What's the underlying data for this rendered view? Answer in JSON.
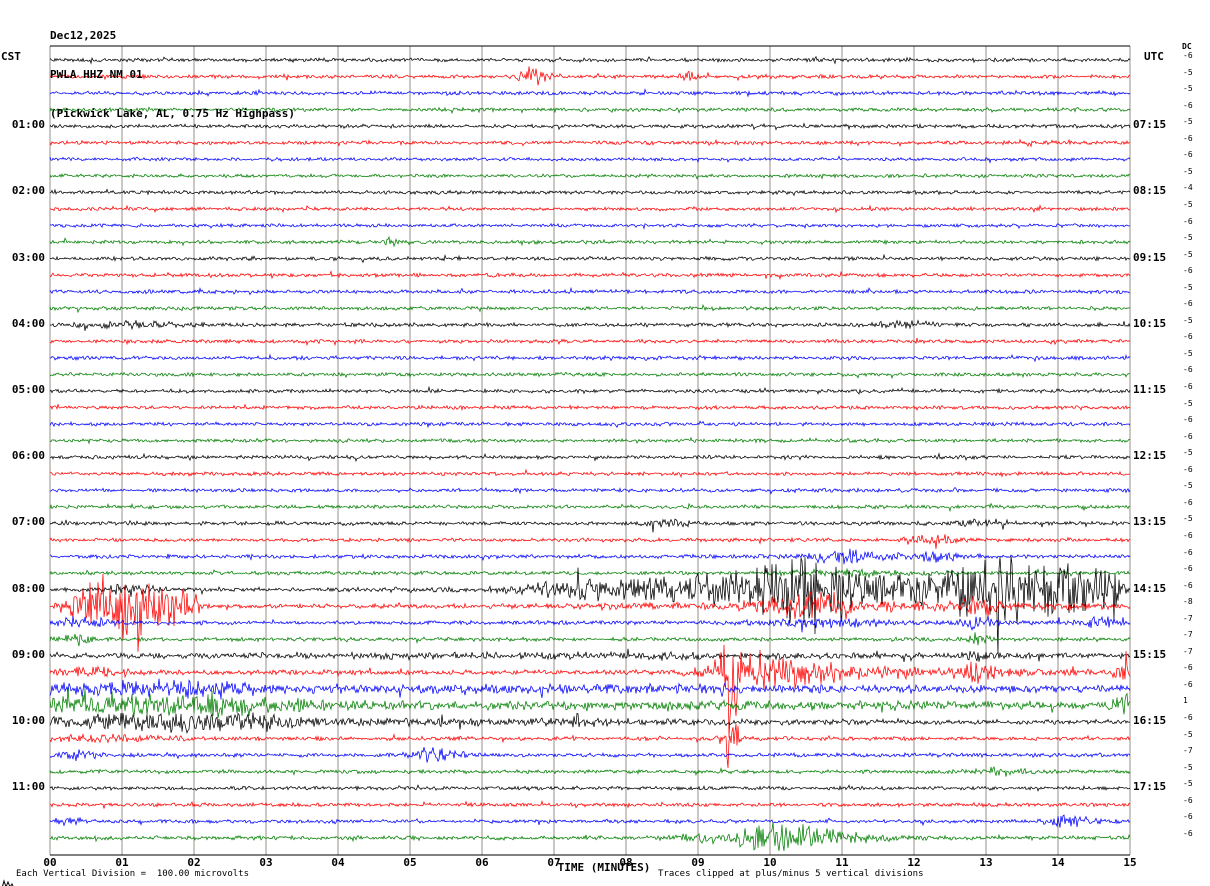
{
  "title": {
    "date": "Dec12,2025",
    "station": "PWLA HHZ NM 01",
    "description": "(Pickwick Lake, AL, 0.75 Hz Highpass)"
  },
  "axes": {
    "left_header": "CST",
    "right_header": "UTC",
    "dc_header": "DC",
    "x_label": "TIME (MINUTES)",
    "x_ticks": [
      "00",
      "01",
      "02",
      "03",
      "04",
      "05",
      "06",
      "07",
      "08",
      "09",
      "10",
      "11",
      "12",
      "13",
      "14",
      "15"
    ]
  },
  "footer": {
    "left": "Each Vertical Division =  100.00 microvolts",
    "right": "Traces clipped at plus/minus 5 vertical divisions"
  },
  "chart_data": {
    "type": "line",
    "subtype": "helicorder-seismogram",
    "station": "PWLA HHZ NM 01",
    "location": "Pickwick Lake, AL",
    "filter": "0.75 Hz Highpass",
    "date": "Dec12,2025",
    "x_range_minutes": [
      0,
      15
    ],
    "minutes_per_row": 15,
    "vertical_division_microvolts": 100.0,
    "clip_divisions": 5,
    "colors": {
      "trace_cycle": [
        "#000000",
        "#ff0000",
        "#0000ff",
        "#007f00"
      ],
      "grid": "#9a8f85",
      "frame": "#000000",
      "background": "#ffffff"
    },
    "rows": [
      {
        "dc": -6,
        "n": 1.0,
        "e": []
      },
      {
        "dc": -5,
        "n": 1.0,
        "e": [
          [
            6.7,
            0.12,
            10
          ],
          [
            8.9,
            0.08,
            5
          ]
        ]
      },
      {
        "dc": -5,
        "n": 1.0,
        "e": []
      },
      {
        "dc": -6,
        "n": 1.0,
        "e": []
      },
      {
        "cst": "01:00",
        "utc": "07:15",
        "dc": -5,
        "n": 1.0,
        "e": []
      },
      {
        "dc": -6,
        "n": 1.0,
        "e": []
      },
      {
        "dc": -6,
        "n": 0.95,
        "e": []
      },
      {
        "dc": -5,
        "n": 0.95,
        "e": []
      },
      {
        "cst": "02:00",
        "utc": "08:15",
        "dc": -4,
        "n": 1.0,
        "e": []
      },
      {
        "dc": -5,
        "n": 0.95,
        "e": []
      },
      {
        "dc": -6,
        "n": 0.95,
        "e": []
      },
      {
        "dc": -5,
        "n": 1.0,
        "e": [
          [
            4.8,
            0.1,
            7
          ]
        ]
      },
      {
        "cst": "03:00",
        "utc": "09:15",
        "dc": -5,
        "n": 1.0,
        "e": []
      },
      {
        "dc": -6,
        "n": 1.0,
        "e": []
      },
      {
        "dc": -5,
        "n": 1.0,
        "e": []
      },
      {
        "dc": -6,
        "n": 1.0,
        "e": []
      },
      {
        "cst": "04:00",
        "utc": "10:15",
        "dc": -5,
        "n": 1.05,
        "e": [
          [
            1.1,
            0.5,
            3
          ],
          [
            11.9,
            0.3,
            3
          ]
        ]
      },
      {
        "dc": -6,
        "n": 1.0,
        "e": []
      },
      {
        "dc": -5,
        "n": 1.0,
        "e": []
      },
      {
        "dc": -6,
        "n": 1.0,
        "e": []
      },
      {
        "cst": "05:00",
        "utc": "11:15",
        "dc": -6,
        "n": 1.0,
        "e": []
      },
      {
        "dc": -5,
        "n": 1.0,
        "e": []
      },
      {
        "dc": -6,
        "n": 1.0,
        "e": []
      },
      {
        "dc": -6,
        "n": 1.0,
        "e": []
      },
      {
        "cst": "06:00",
        "utc": "12:15",
        "dc": -5,
        "n": 1.0,
        "e": []
      },
      {
        "dc": -6,
        "n": 1.0,
        "e": []
      },
      {
        "dc": -5,
        "n": 1.0,
        "e": []
      },
      {
        "dc": -6,
        "n": 1.0,
        "e": []
      },
      {
        "cst": "07:00",
        "utc": "13:15",
        "dc": -5,
        "n": 1.05,
        "e": [
          [
            8.55,
            0.2,
            5
          ],
          [
            13.0,
            0.25,
            3.5
          ]
        ]
      },
      {
        "dc": -6,
        "n": 1.0,
        "e": [
          [
            12.2,
            0.3,
            4
          ]
        ]
      },
      {
        "dc": -6,
        "n": 1.05,
        "e": [
          [
            11.0,
            0.45,
            6
          ],
          [
            12.3,
            0.3,
            4
          ]
        ]
      },
      {
        "dc": -6,
        "n": 1.0,
        "e": [
          [
            11.0,
            0.5,
            3
          ]
        ]
      },
      {
        "cst": "08:00",
        "utc": "14:15",
        "dc": -6,
        "n": 1.15,
        "e": [
          [
            1.1,
            0.25,
            6
          ],
          [
            7.4,
            0.5,
            9
          ],
          [
            8.4,
            0.4,
            9
          ],
          [
            9.2,
            0.3,
            10
          ],
          [
            10.0,
            0.4,
            22
          ],
          [
            10.6,
            0.3,
            30
          ],
          [
            11.1,
            0.4,
            16
          ],
          [
            12.0,
            0.3,
            10
          ],
          [
            12.7,
            0.4,
            20
          ],
          [
            13.3,
            0.4,
            26
          ],
          [
            13.9,
            0.35,
            20
          ],
          [
            14.5,
            0.3,
            16
          ],
          [
            14.9,
            0.2,
            14
          ],
          [
            11.5,
            3.0,
            5
          ]
        ]
      },
      {
        "dc": -8,
        "n": 1.15,
        "e": [
          [
            0.55,
            0.2,
            22
          ],
          [
            1.0,
            0.25,
            30
          ],
          [
            1.5,
            0.25,
            20
          ],
          [
            1.8,
            0.15,
            12
          ],
          [
            10.4,
            0.4,
            9
          ],
          [
            10.9,
            0.3,
            7
          ],
          [
            12.9,
            0.2,
            8
          ],
          [
            11.5,
            2.5,
            3.5
          ]
        ]
      },
      {
        "dc": -7,
        "n": 1.1,
        "e": [
          [
            0.5,
            0.25,
            6
          ],
          [
            10.8,
            0.6,
            4.5
          ],
          [
            12.9,
            0.15,
            8
          ],
          [
            14.6,
            0.3,
            4
          ]
        ]
      },
      {
        "dc": -7,
        "n": 1.05,
        "e": [
          [
            0.35,
            0.15,
            5
          ],
          [
            12.9,
            0.1,
            4
          ]
        ]
      },
      {
        "cst": "09:00",
        "utc": "15:15",
        "dc": -7,
        "n": 1.2,
        "e": [
          [
            8.0,
            4.0,
            2
          ],
          [
            12.9,
            0.15,
            4
          ]
        ]
      },
      {
        "dc": -6,
        "n": 1.3,
        "e": [
          [
            9.45,
            0.1,
            55
          ],
          [
            9.75,
            0.35,
            14
          ],
          [
            10.3,
            0.5,
            8
          ],
          [
            11.5,
            1.5,
            4.5
          ],
          [
            12.9,
            0.15,
            10
          ],
          [
            14.95,
            0.12,
            10
          ],
          [
            0.6,
            0.4,
            4
          ]
        ]
      },
      {
        "dc": -6,
        "n": 1.5,
        "e": [
          [
            0.9,
            1.0,
            5
          ],
          [
            2.3,
            0.5,
            4
          ],
          [
            7.0,
            5.0,
            2.5
          ]
        ]
      },
      {
        "dc": 1,
        "n": 1.5,
        "e": [
          [
            0.9,
            1.0,
            8
          ],
          [
            2.2,
            0.5,
            6
          ],
          [
            3.2,
            0.4,
            4
          ],
          [
            8.0,
            5.0,
            2.5
          ],
          [
            14.9,
            0.12,
            10
          ]
        ]
      },
      {
        "cst": "10:00",
        "utc": "16:15",
        "dc": -6,
        "n": 1.3,
        "e": [
          [
            0.9,
            0.9,
            6
          ],
          [
            2.1,
            0.7,
            5
          ],
          [
            3.0,
            0.5,
            4
          ],
          [
            7.3,
            0.12,
            7
          ],
          [
            5.5,
            3.0,
            2
          ]
        ]
      },
      {
        "dc": -5,
        "n": 1.1,
        "e": [
          [
            9.45,
            0.07,
            40
          ],
          [
            0.8,
            0.6,
            3
          ]
        ]
      },
      {
        "dc": -7,
        "n": 1.1,
        "e": [
          [
            5.3,
            0.25,
            9
          ],
          [
            0.4,
            0.2,
            4
          ]
        ]
      },
      {
        "dc": -5,
        "n": 1.05,
        "e": [
          [
            13.2,
            0.25,
            4
          ]
        ]
      },
      {
        "cst": "11:00",
        "utc": "17:15",
        "dc": -5,
        "n": 1.0,
        "e": []
      },
      {
        "dc": -6,
        "n": 1.0,
        "e": []
      },
      {
        "dc": -6,
        "n": 1.0,
        "e": [
          [
            14.2,
            0.25,
            6
          ],
          [
            0.3,
            0.15,
            4
          ]
        ]
      },
      {
        "dc": -6,
        "n": 1.1,
        "e": [
          [
            10.2,
            0.35,
            12
          ],
          [
            9.8,
            0.3,
            6
          ],
          [
            9.0,
            0.25,
            4
          ],
          [
            10.8,
            0.6,
            5
          ]
        ]
      }
    ]
  }
}
